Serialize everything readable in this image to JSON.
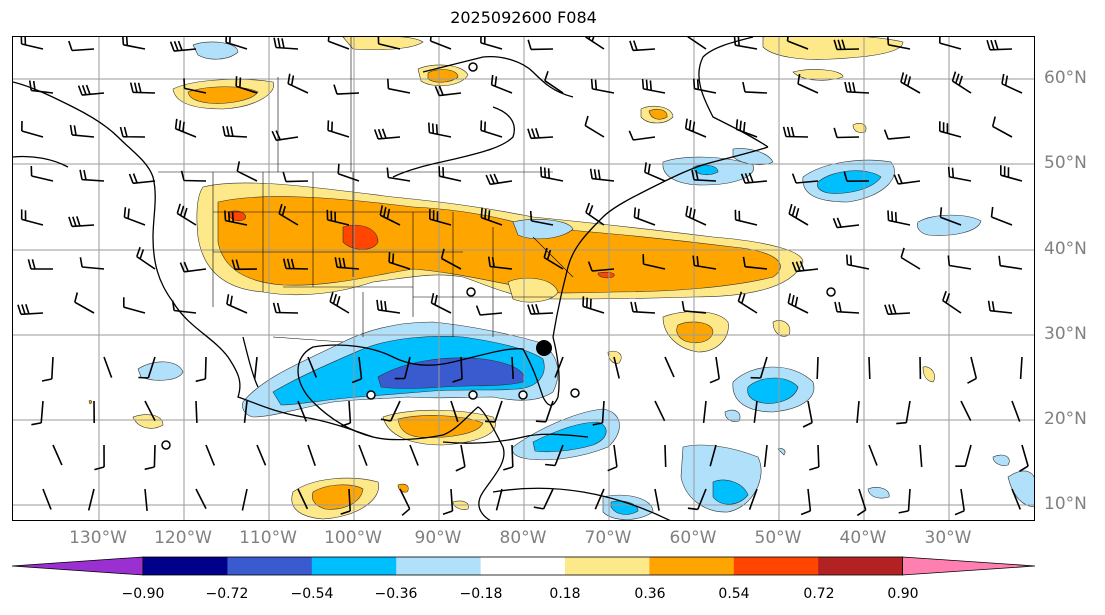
{
  "title": "2025092600 F084",
  "lon_labels": [
    "130°W",
    "120°W",
    "110°W",
    "100°W",
    "90°W",
    "80°W",
    "70°W",
    "60°W",
    "50°W",
    "40°W",
    "30°W"
  ],
  "lat_labels": [
    "60°N",
    "50°N",
    "40°N",
    "30°N",
    "20°N",
    "10°N"
  ],
  "colorbar": {
    "tick_labels": [
      "−0.90",
      "−0.72",
      "−0.54",
      "−0.36",
      "−0.18",
      "0.18",
      "0.36",
      "0.54",
      "0.72",
      "0.90"
    ],
    "colors": [
      "#9b30d0",
      "#00008b",
      "#3a5bd0",
      "#00bfff",
      "#b0e0fa",
      "#ffffff",
      "#fde88a",
      "#ffa500",
      "#ff4500",
      "#b22222",
      "#ff80b0"
    ]
  },
  "colors": {
    "neg_light": "#b0e0fa",
    "neg_mid": "#00bfff",
    "neg_strong": "#3a5bd0",
    "pos_light": "#fde88a",
    "pos_mid": "#ffa500",
    "pos_strong": "#ff4500",
    "grid": "#999999",
    "axis_label": "#808080"
  },
  "markers": {
    "storm_center_icon": "filled-circle-icon",
    "track_point_icon": "open-circle-icon"
  }
}
